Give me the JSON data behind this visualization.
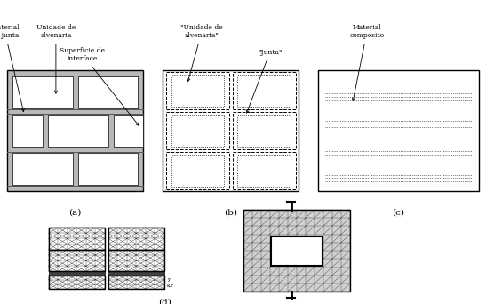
{
  "fig_width": 5.47,
  "fig_height": 3.42,
  "dpi": 100,
  "bg_color": "#ffffff",
  "mortar_color": "#b8b8b8",
  "brick_color": "#ffffff",
  "border_color": "#000000",
  "dark_line": "#555555",
  "labels": {
    "a": "(a)",
    "b": "(b)",
    "c": "(c)",
    "d": "(d)"
  }
}
